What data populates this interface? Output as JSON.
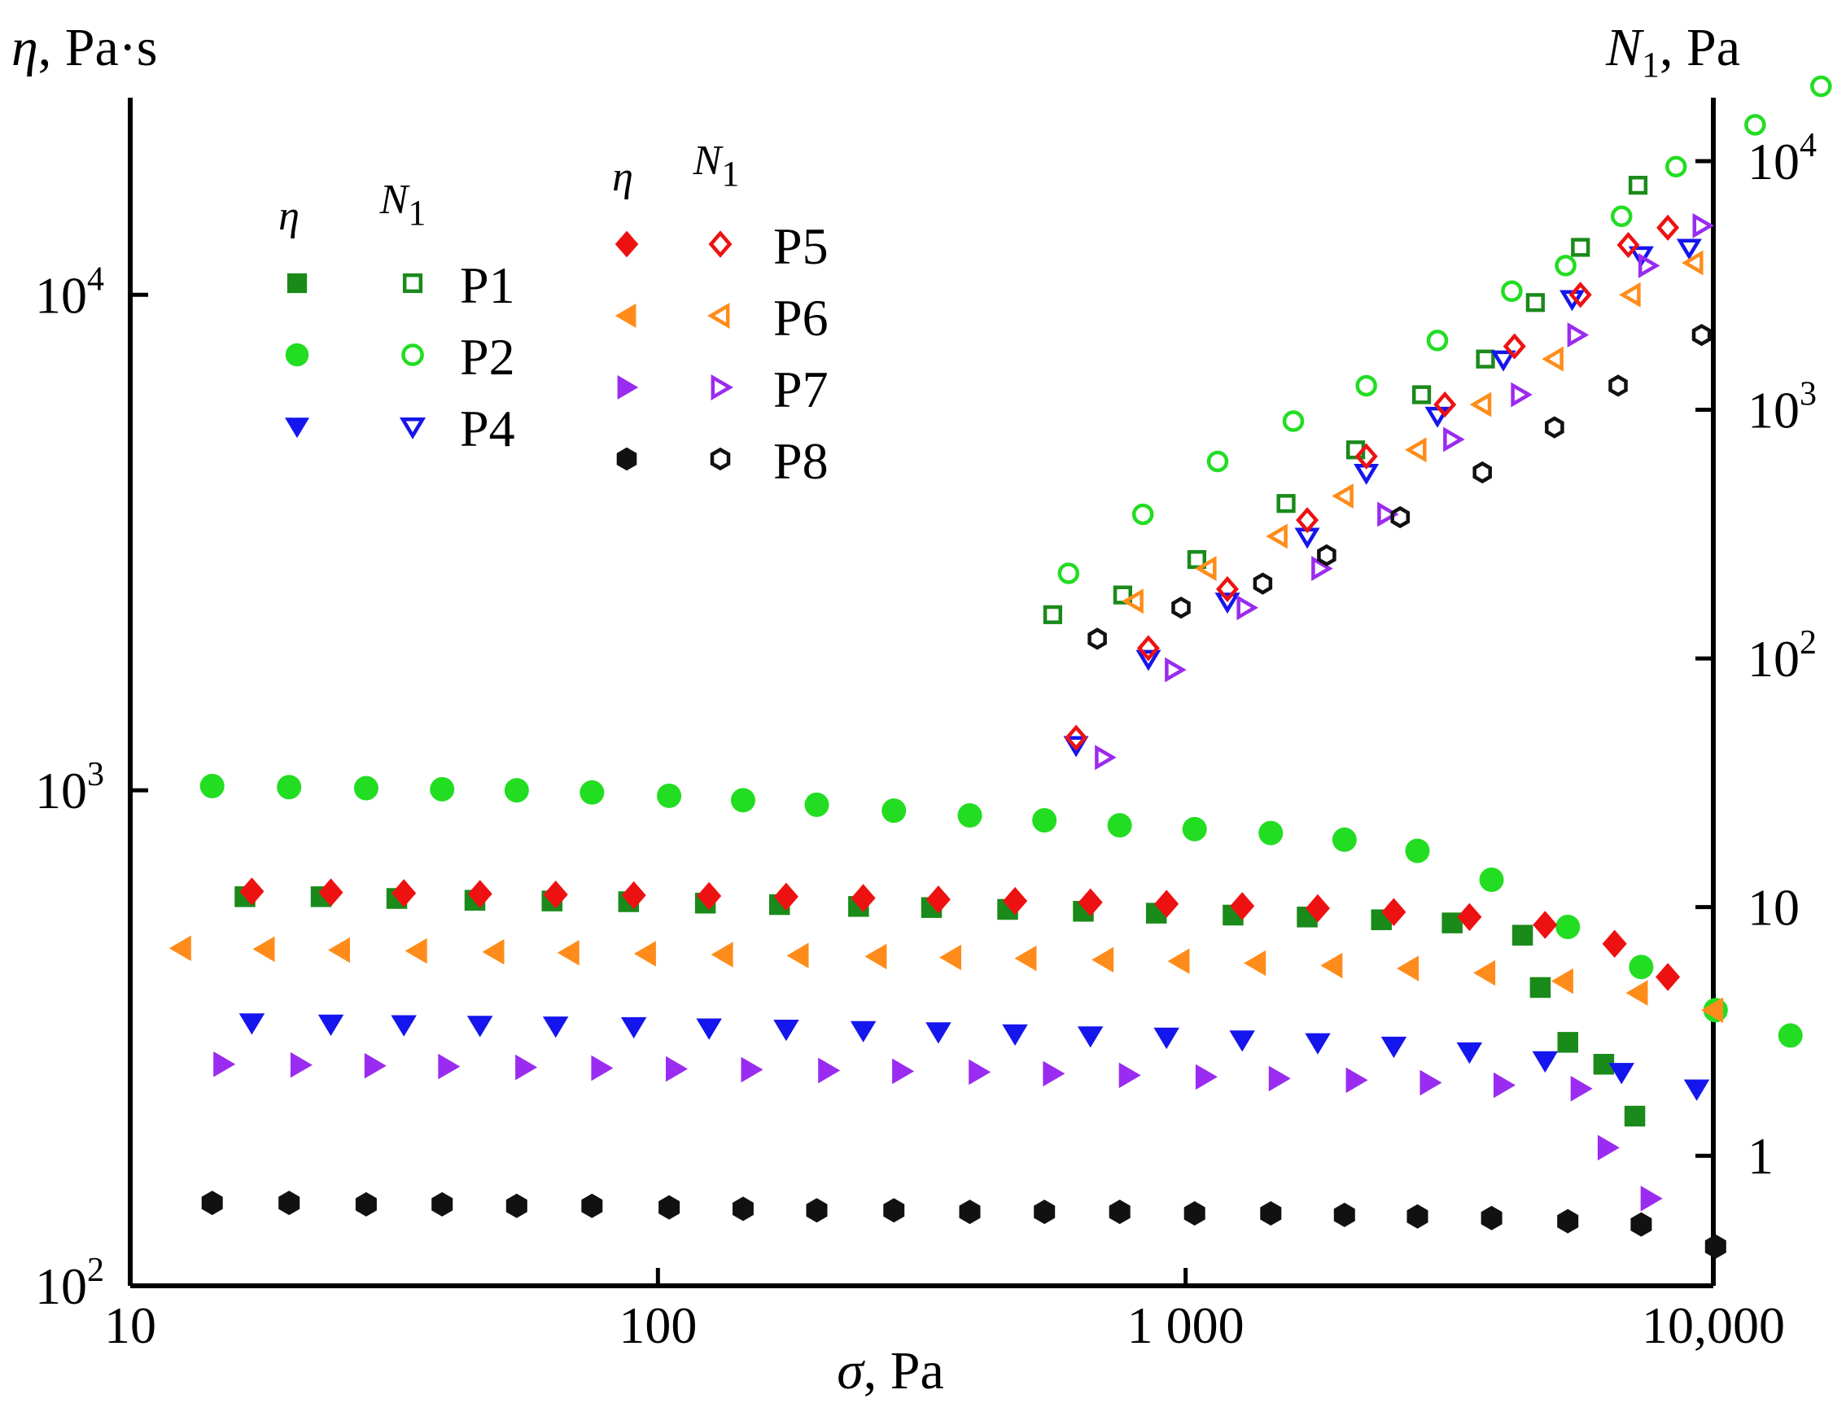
{
  "chart_data": {
    "type": "scatter",
    "x_axis": {
      "label_symbol": "σ",
      "label_unit": ", Pa",
      "scale": "log",
      "range": [
        10,
        10000
      ],
      "ticks": [
        {
          "value": 10,
          "label": "10"
        },
        {
          "value": 100,
          "label": "100"
        },
        {
          "value": 1000,
          "label": "1 000"
        },
        {
          "value": 10000,
          "label": "10,000"
        }
      ]
    },
    "y_left_axis": {
      "label_symbol": "η",
      "label_unit": ", Pa·s",
      "scale": "log",
      "range": [
        100,
        25000
      ],
      "ticks": [
        {
          "value": 100,
          "base": "10",
          "exp": "2"
        },
        {
          "value": 1000,
          "base": "10",
          "exp": "3"
        },
        {
          "value": 10000,
          "base": "10",
          "exp": "4"
        }
      ]
    },
    "y_right_axis": {
      "label_symbol": "N",
      "label_subscript": "1",
      "label_unit": ", Pa",
      "scale": "log",
      "range": [
        0.3,
        18000
      ],
      "ticks": [
        {
          "value": 1,
          "label": "1"
        },
        {
          "value": 10,
          "label": "10"
        },
        {
          "value": 100,
          "base": "10",
          "exp": "2"
        },
        {
          "value": 1000,
          "base": "10",
          "exp": "3"
        },
        {
          "value": 10000,
          "base": "10",
          "exp": "4"
        }
      ]
    },
    "legend": {
      "placement": "top-left",
      "eta_header": "η",
      "n1_header_symbol": "N",
      "n1_header_subscript": "1"
    },
    "series": [
      {
        "name": "P1",
        "color": "#1a8a1a",
        "marker": "square",
        "eta": [
          [
            16.5,
            610
          ],
          [
            23,
            610
          ],
          [
            32,
            605
          ],
          [
            45,
            600
          ],
          [
            63,
            598
          ],
          [
            88,
            596
          ],
          [
            123,
            592
          ],
          [
            170,
            588
          ],
          [
            240,
            583
          ],
          [
            330,
            580
          ],
          [
            460,
            575
          ],
          [
            640,
            570
          ],
          [
            880,
            565
          ],
          [
            1230,
            560
          ],
          [
            1700,
            555
          ],
          [
            2350,
            548
          ],
          [
            3200,
            540
          ],
          [
            4350,
            510
          ],
          [
            4700,
            400
          ],
          [
            5300,
            310
          ],
          [
            6200,
            280
          ],
          [
            7100,
            220
          ]
        ],
        "n1": [
          [
            560,
            150
          ],
          [
            760,
            180
          ],
          [
            1050,
            250
          ],
          [
            1550,
            420
          ],
          [
            2100,
            690
          ],
          [
            2800,
            1150
          ],
          [
            3700,
            1600
          ],
          [
            4600,
            2700
          ],
          [
            5600,
            4500
          ],
          [
            7200,
            8000
          ]
        ]
      },
      {
        "name": "P2",
        "color": "#22dd22",
        "marker": "circle",
        "eta": [
          [
            14.3,
            1020
          ],
          [
            20,
            1015
          ],
          [
            28,
            1010
          ],
          [
            39,
            1005
          ],
          [
            54,
            1000
          ],
          [
            75,
            990
          ],
          [
            105,
            975
          ],
          [
            145,
            955
          ],
          [
            200,
            935
          ],
          [
            280,
            910
          ],
          [
            390,
            890
          ],
          [
            540,
            870
          ],
          [
            750,
            850
          ],
          [
            1040,
            835
          ],
          [
            1450,
            820
          ],
          [
            2000,
            795
          ],
          [
            2750,
            755
          ],
          [
            3800,
            660
          ],
          [
            5300,
            530
          ],
          [
            7300,
            440
          ],
          [
            10100,
            360
          ],
          [
            14000,
            320
          ]
        ],
        "n1": [
          [
            600,
            220
          ],
          [
            830,
            380
          ],
          [
            1150,
            620
          ],
          [
            1600,
            900
          ],
          [
            2200,
            1250
          ],
          [
            3000,
            1900
          ],
          [
            4150,
            3000
          ],
          [
            5250,
            3800
          ],
          [
            6700,
            6000
          ],
          [
            8500,
            9500
          ],
          [
            12000,
            14000
          ],
          [
            16000,
            20000
          ]
        ]
      },
      {
        "name": "P4",
        "color": "#1515ee",
        "marker": "triangle-down",
        "eta": [
          [
            17,
            340
          ],
          [
            24,
            338
          ],
          [
            33,
            337
          ],
          [
            46,
            336
          ],
          [
            64,
            335
          ],
          [
            90,
            334
          ],
          [
            125,
            332
          ],
          [
            175,
            330
          ],
          [
            245,
            328
          ],
          [
            340,
            326
          ],
          [
            475,
            323
          ],
          [
            660,
            320
          ],
          [
            920,
            318
          ],
          [
            1280,
            314
          ],
          [
            1780,
            310
          ],
          [
            2480,
            305
          ],
          [
            3450,
            297
          ],
          [
            4800,
            285
          ],
          [
            6700,
            270
          ],
          [
            9300,
            250
          ]
        ],
        "n1": [
          [
            620,
            45
          ],
          [
            850,
            100
          ],
          [
            1200,
            170
          ],
          [
            1700,
            310
          ],
          [
            2200,
            560
          ],
          [
            3000,
            950
          ],
          [
            4000,
            1600
          ],
          [
            5400,
            2800
          ],
          [
            7300,
            4200
          ],
          [
            9000,
            4500
          ]
        ]
      },
      {
        "name": "P5",
        "color": "#ee1111",
        "marker": "diamond",
        "eta": [
          [
            17,
            625
          ],
          [
            24,
            622
          ],
          [
            33,
            620
          ],
          [
            46,
            618
          ],
          [
            64,
            616
          ],
          [
            90,
            614
          ],
          [
            125,
            612
          ],
          [
            175,
            610
          ],
          [
            245,
            606
          ],
          [
            340,
            602
          ],
          [
            475,
            598
          ],
          [
            660,
            594
          ],
          [
            920,
            590
          ],
          [
            1280,
            584
          ],
          [
            1780,
            578
          ],
          [
            2480,
            568
          ],
          [
            3450,
            555
          ],
          [
            4800,
            535
          ],
          [
            6500,
            490
          ],
          [
            8200,
            420
          ]
        ],
        "n1": [
          [
            620,
            48
          ],
          [
            850,
            110
          ],
          [
            1200,
            190
          ],
          [
            1700,
            360
          ],
          [
            2200,
            650
          ],
          [
            3100,
            1050
          ],
          [
            4200,
            1800
          ],
          [
            5600,
            2900
          ],
          [
            6900,
            4600
          ],
          [
            8200,
            5400
          ]
        ]
      },
      {
        "name": "P6",
        "color": "#ff8c1a",
        "marker": "triangle-left",
        "eta": [
          [
            12.5,
            480
          ],
          [
            18,
            478
          ],
          [
            25,
            476
          ],
          [
            35,
            474
          ],
          [
            49,
            472
          ],
          [
            68,
            470
          ],
          [
            95,
            468
          ],
          [
            133,
            466
          ],
          [
            185,
            464
          ],
          [
            260,
            462
          ],
          [
            360,
            460
          ],
          [
            500,
            458
          ],
          [
            700,
            455
          ],
          [
            975,
            452
          ],
          [
            1360,
            448
          ],
          [
            1900,
            443
          ],
          [
            2650,
            437
          ],
          [
            3700,
            428
          ],
          [
            5200,
            412
          ],
          [
            7200,
            390
          ],
          [
            10000,
            360
          ]
        ],
        "n1": [
          [
            800,
            170
          ],
          [
            1100,
            230
          ],
          [
            1500,
            310
          ],
          [
            2000,
            450
          ],
          [
            2750,
            690
          ],
          [
            3650,
            1050
          ],
          [
            5000,
            1600
          ],
          [
            7000,
            2900
          ],
          [
            9200,
            3900
          ]
        ]
      },
      {
        "name": "P7",
        "color": "#9a2bf0",
        "marker": "triangle-right",
        "eta": [
          [
            15,
            280
          ],
          [
            21,
            279
          ],
          [
            29,
            278
          ],
          [
            40,
            277
          ],
          [
            56,
            276
          ],
          [
            78,
            275
          ],
          [
            108,
            274
          ],
          [
            150,
            273
          ],
          [
            210,
            272
          ],
          [
            290,
            271
          ],
          [
            405,
            270
          ],
          [
            560,
            268
          ],
          [
            780,
            266
          ],
          [
            1090,
            264
          ],
          [
            1500,
            262
          ],
          [
            2100,
            260
          ],
          [
            2900,
            257
          ],
          [
            4000,
            254
          ],
          [
            5600,
            250
          ],
          [
            6300,
            190
          ],
          [
            7600,
            150
          ]
        ],
        "n1": [
          [
            700,
            40
          ],
          [
            950,
            90
          ],
          [
            1300,
            160
          ],
          [
            1800,
            230
          ],
          [
            2400,
            380
          ],
          [
            3200,
            760
          ],
          [
            4300,
            1150
          ],
          [
            5500,
            2000
          ],
          [
            7500,
            3800
          ],
          [
            9500,
            5500
          ]
        ]
      },
      {
        "name": "P8",
        "color": "#111111",
        "marker": "hexagon",
        "eta": [
          [
            14.3,
            147
          ],
          [
            20,
            147
          ],
          [
            28,
            146
          ],
          [
            39,
            146
          ],
          [
            54,
            145
          ],
          [
            75,
            145
          ],
          [
            105,
            144
          ],
          [
            145,
            143
          ],
          [
            200,
            142
          ],
          [
            280,
            142
          ],
          [
            390,
            141
          ],
          [
            540,
            141
          ],
          [
            750,
            141
          ],
          [
            1040,
            140
          ],
          [
            1450,
            140
          ],
          [
            2000,
            139
          ],
          [
            2750,
            138
          ],
          [
            3800,
            137
          ],
          [
            5300,
            135
          ],
          [
            7300,
            133
          ],
          [
            10100,
            120
          ]
        ],
        "n1": [
          [
            680,
            120
          ],
          [
            980,
            160
          ],
          [
            1400,
            200
          ],
          [
            1850,
            260
          ],
          [
            2550,
            370
          ],
          [
            3650,
            560
          ],
          [
            5000,
            850
          ],
          [
            6600,
            1250
          ],
          [
            9500,
            2000
          ]
        ]
      }
    ],
    "legend_groups": [
      [
        "P1",
        "P2",
        "P4"
      ],
      [
        "P5",
        "P6",
        "P7",
        "P8"
      ]
    ]
  }
}
